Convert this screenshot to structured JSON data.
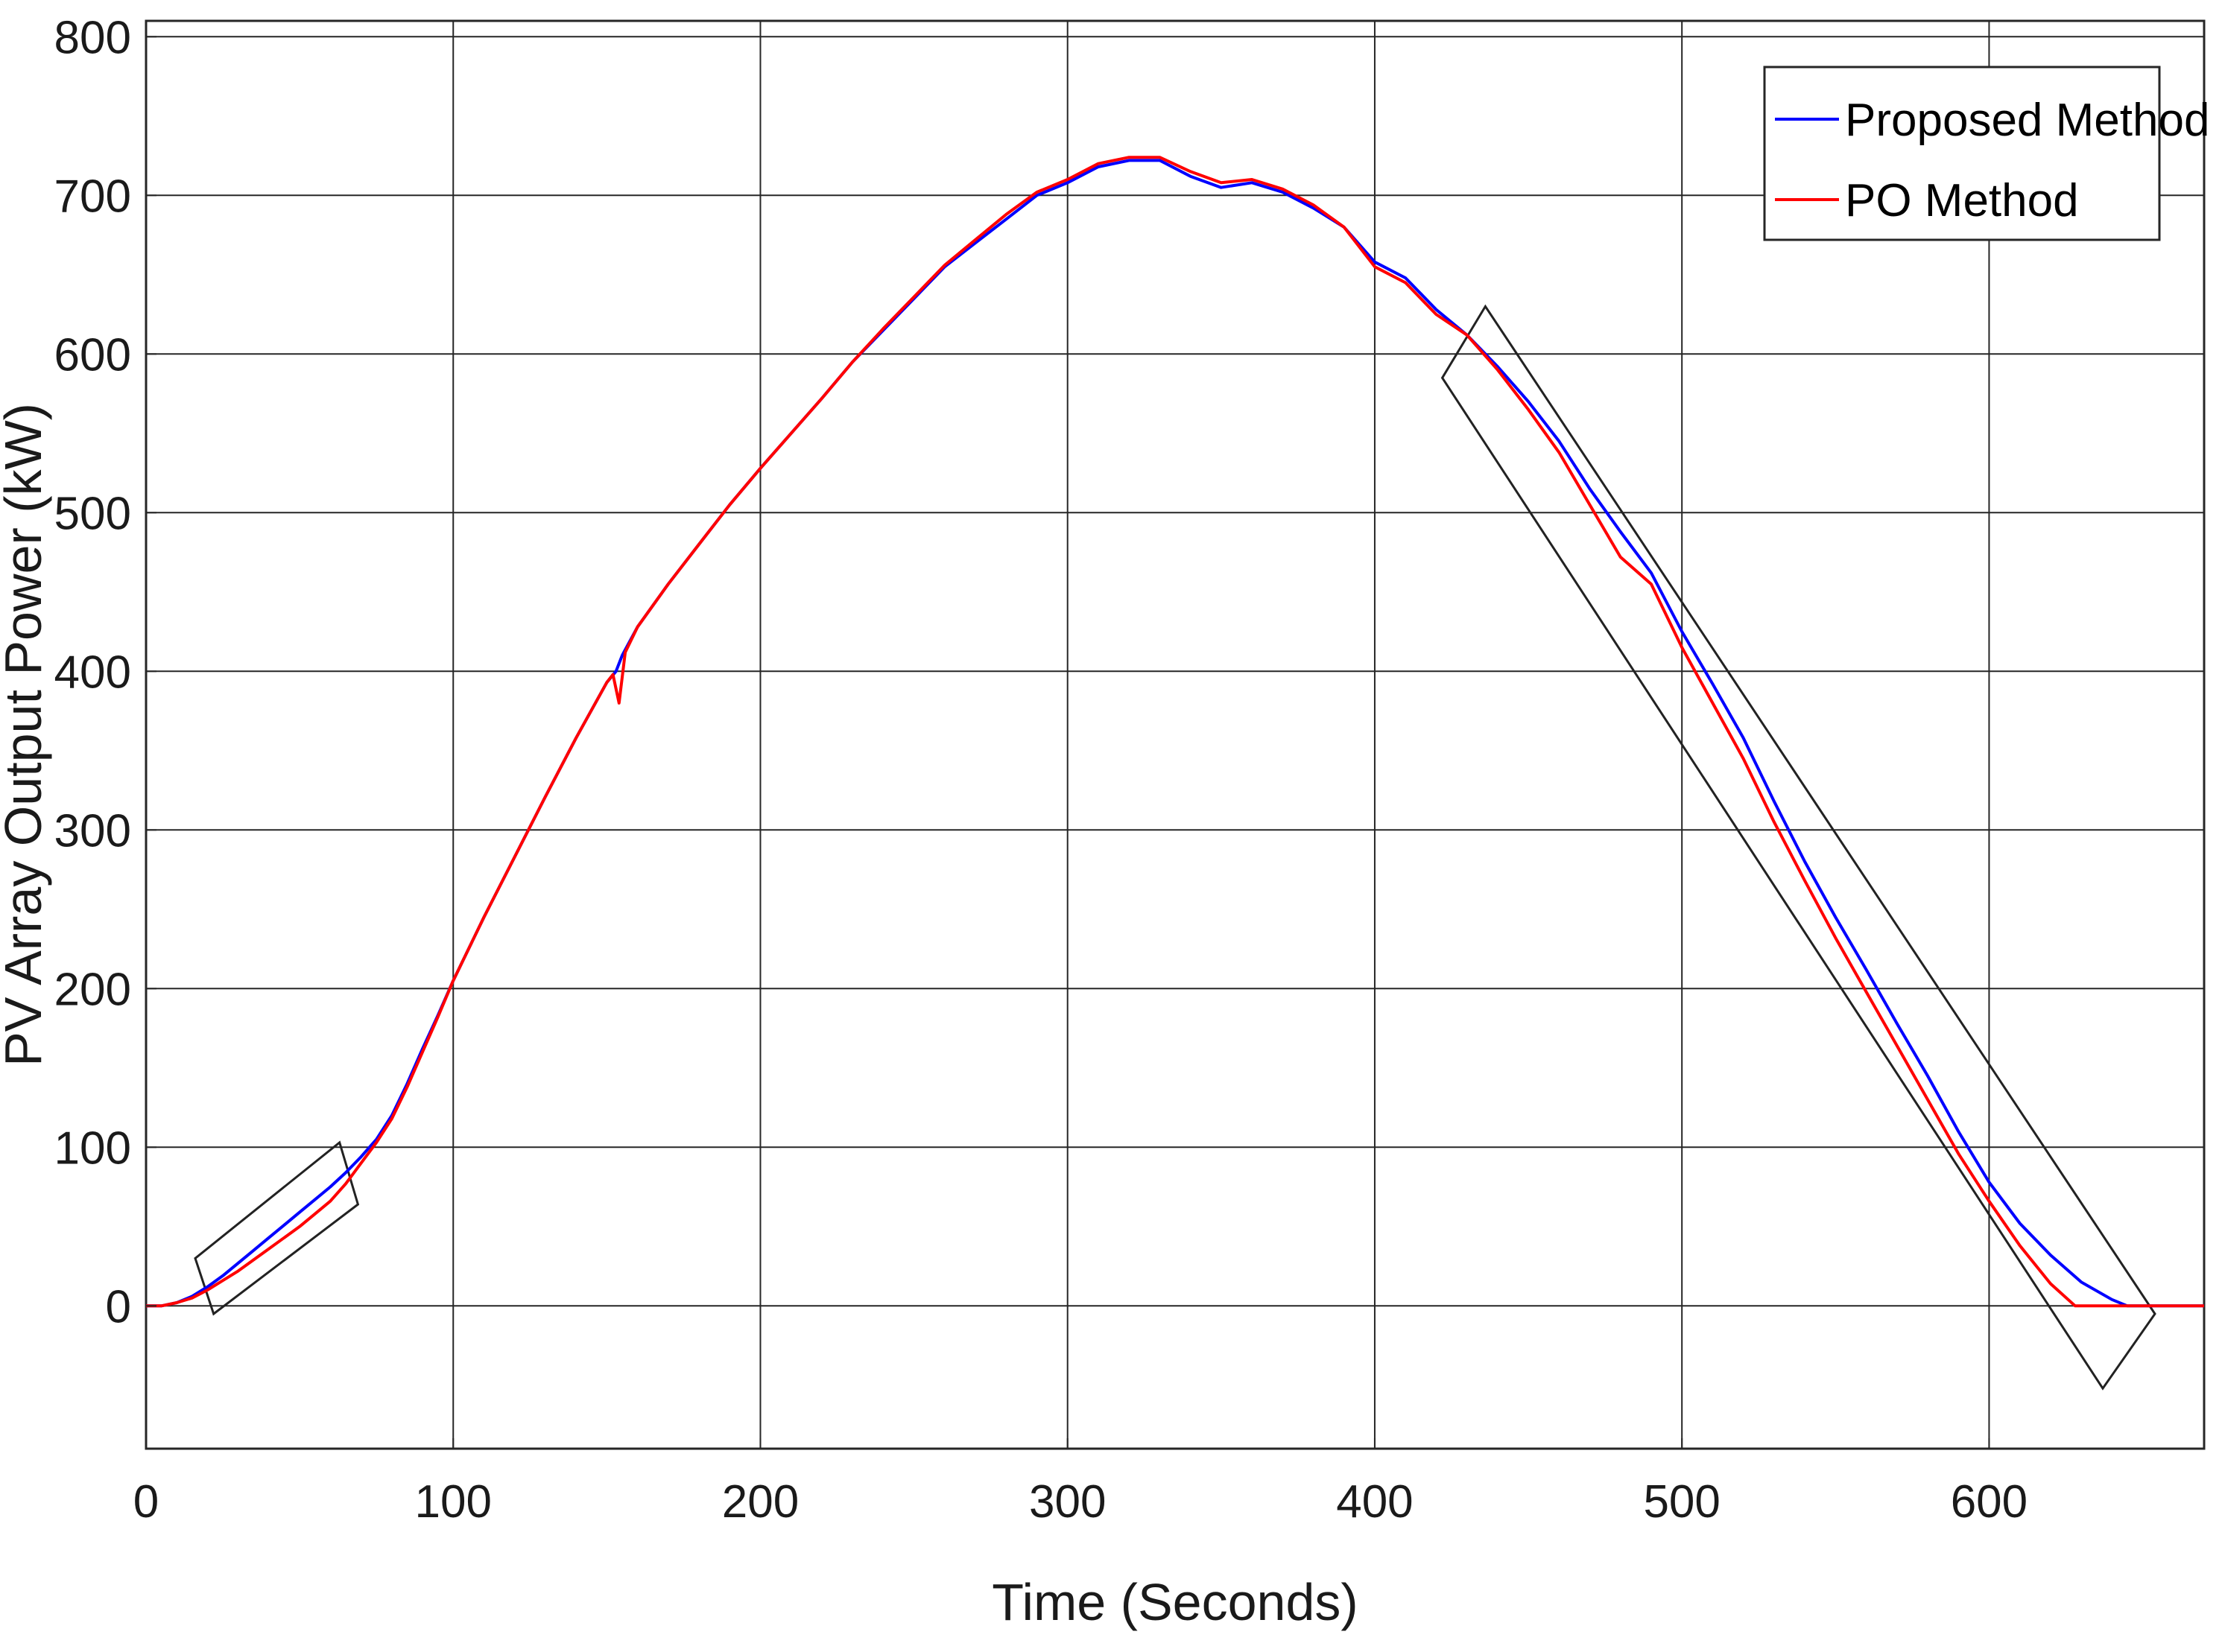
{
  "chart_data": {
    "type": "line",
    "title": "",
    "xlabel": "Time (Seconds)",
    "ylabel": "PV Array Output Power (kW)",
    "xlim": [
      0,
      670
    ],
    "ylim": [
      -90,
      810
    ],
    "xticks": [
      0,
      100,
      200,
      300,
      400,
      500,
      600
    ],
    "yticks": [
      0,
      100,
      200,
      300,
      400,
      500,
      600,
      700,
      800
    ],
    "xtick_labels": [
      "0",
      "100",
      "200",
      "300",
      "400",
      "500",
      "600"
    ],
    "ytick_labels": [
      "0",
      "100",
      "200",
      "300",
      "400",
      "500",
      "600",
      "700",
      "800"
    ],
    "grid": true,
    "legend_position": "top-right",
    "series": [
      {
        "name": "Proposed Method",
        "color": "#0000ff",
        "points": [
          [
            0,
            0
          ],
          [
            5,
            0
          ],
          [
            10,
            2
          ],
          [
            15,
            6
          ],
          [
            20,
            12
          ],
          [
            25,
            19
          ],
          [
            30,
            27
          ],
          [
            35,
            35
          ],
          [
            40,
            43
          ],
          [
            45,
            51
          ],
          [
            50,
            59
          ],
          [
            55,
            67
          ],
          [
            60,
            75
          ],
          [
            65,
            84
          ],
          [
            70,
            94
          ],
          [
            75,
            105
          ],
          [
            80,
            120
          ],
          [
            85,
            140
          ],
          [
            90,
            162
          ],
          [
            95,
            183
          ],
          [
            100,
            205
          ],
          [
            110,
            245
          ],
          [
            120,
            283
          ],
          [
            130,
            321
          ],
          [
            140,
            358
          ],
          [
            150,
            393
          ],
          [
            153,
            400
          ],
          [
            155,
            410
          ],
          [
            160,
            428
          ],
          [
            170,
            455
          ],
          [
            180,
            480
          ],
          [
            190,
            505
          ],
          [
            200,
            528
          ],
          [
            210,
            550
          ],
          [
            220,
            572
          ],
          [
            230,
            595
          ],
          [
            240,
            615
          ],
          [
            250,
            635
          ],
          [
            260,
            655
          ],
          [
            270,
            670
          ],
          [
            280,
            685
          ],
          [
            290,
            700
          ],
          [
            300,
            708
          ],
          [
            310,
            718
          ],
          [
            320,
            722
          ],
          [
            330,
            722
          ],
          [
            340,
            712
          ],
          [
            350,
            705
          ],
          [
            360,
            708
          ],
          [
            370,
            702
          ],
          [
            380,
            692
          ],
          [
            390,
            680
          ],
          [
            400,
            658
          ],
          [
            410,
            648
          ],
          [
            420,
            628
          ],
          [
            430,
            612
          ],
          [
            440,
            592
          ],
          [
            450,
            570
          ],
          [
            460,
            545
          ],
          [
            470,
            515
          ],
          [
            480,
            488
          ],
          [
            490,
            462
          ],
          [
            500,
            425
          ],
          [
            510,
            392
          ],
          [
            520,
            358
          ],
          [
            530,
            318
          ],
          [
            540,
            280
          ],
          [
            550,
            245
          ],
          [
            560,
            212
          ],
          [
            570,
            178
          ],
          [
            580,
            145
          ],
          [
            590,
            110
          ],
          [
            600,
            78
          ],
          [
            610,
            52
          ],
          [
            620,
            32
          ],
          [
            630,
            15
          ],
          [
            640,
            4
          ],
          [
            645,
            0
          ],
          [
            670,
            0
          ]
        ]
      },
      {
        "name": "PO Method",
        "color": "#ff0000",
        "points": [
          [
            0,
            0
          ],
          [
            5,
            0
          ],
          [
            10,
            2
          ],
          [
            15,
            5
          ],
          [
            20,
            10
          ],
          [
            25,
            16
          ],
          [
            30,
            22
          ],
          [
            35,
            29
          ],
          [
            40,
            36
          ],
          [
            45,
            43
          ],
          [
            50,
            50
          ],
          [
            55,
            58
          ],
          [
            60,
            66
          ],
          [
            65,
            77
          ],
          [
            70,
            90
          ],
          [
            75,
            103
          ],
          [
            80,
            118
          ],
          [
            85,
            138
          ],
          [
            90,
            160
          ],
          [
            95,
            182
          ],
          [
            100,
            205
          ],
          [
            110,
            245
          ],
          [
            120,
            283
          ],
          [
            130,
            321
          ],
          [
            140,
            358
          ],
          [
            150,
            393
          ],
          [
            152,
            398
          ],
          [
            154,
            380
          ],
          [
            156,
            412
          ],
          [
            160,
            428
          ],
          [
            170,
            455
          ],
          [
            180,
            480
          ],
          [
            190,
            505
          ],
          [
            200,
            528
          ],
          [
            210,
            550
          ],
          [
            220,
            572
          ],
          [
            230,
            595
          ],
          [
            240,
            616
          ],
          [
            250,
            636
          ],
          [
            260,
            656
          ],
          [
            270,
            672
          ],
          [
            280,
            688
          ],
          [
            290,
            702
          ],
          [
            300,
            710
          ],
          [
            310,
            720
          ],
          [
            320,
            724
          ],
          [
            330,
            724
          ],
          [
            340,
            715
          ],
          [
            350,
            708
          ],
          [
            360,
            710
          ],
          [
            370,
            704
          ],
          [
            380,
            694
          ],
          [
            390,
            680
          ],
          [
            400,
            655
          ],
          [
            410,
            645
          ],
          [
            420,
            625
          ],
          [
            430,
            612
          ],
          [
            440,
            590
          ],
          [
            450,
            565
          ],
          [
            460,
            538
          ],
          [
            470,
            505
          ],
          [
            480,
            472
          ],
          [
            490,
            455
          ],
          [
            500,
            415
          ],
          [
            510,
            380
          ],
          [
            520,
            345
          ],
          [
            530,
            305
          ],
          [
            540,
            268
          ],
          [
            550,
            232
          ],
          [
            560,
            198
          ],
          [
            570,
            164
          ],
          [
            580,
            130
          ],
          [
            590,
            96
          ],
          [
            600,
            66
          ],
          [
            610,
            38
          ],
          [
            620,
            14
          ],
          [
            628,
            0
          ],
          [
            670,
            0
          ]
        ]
      }
    ],
    "annotations": [
      {
        "type": "box",
        "corners": [
          [
            16,
            30
          ],
          [
            63,
            103
          ],
          [
            69,
            64
          ],
          [
            22,
            -5
          ]
        ]
      },
      {
        "type": "box",
        "corners": [
          [
            422,
            585
          ],
          [
            436,
            630
          ],
          [
            654,
            -5
          ],
          [
            637,
            -52
          ]
        ]
      }
    ]
  },
  "legend": {
    "items": [
      {
        "label": "Proposed Method",
        "color": "#0000ff"
      },
      {
        "label": "PO Method",
        "color": "#ff0000"
      }
    ]
  }
}
